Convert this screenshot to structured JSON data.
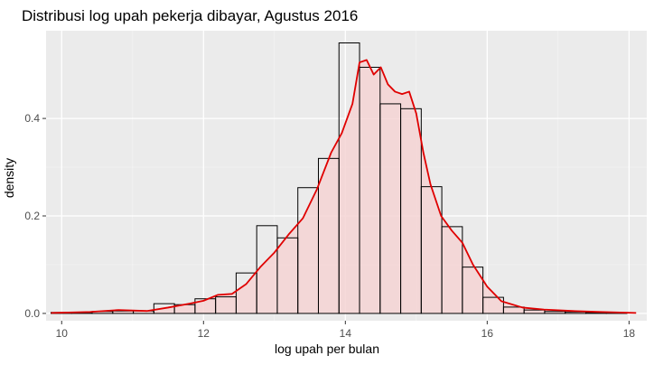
{
  "chart_data": {
    "type": "bar",
    "title": "Distribusi log upah pekerja dibayar, Agustus 2016",
    "xlabel": "log upah per bulan",
    "ylabel": "density",
    "xlim": [
      9.78,
      18.25
    ],
    "ylim": [
      -0.015,
      0.58
    ],
    "x_ticks": [
      10,
      12,
      14,
      16,
      18
    ],
    "x_tick_labels": [
      "10",
      "12",
      "14",
      "16",
      "18"
    ],
    "y_ticks": [
      0.0,
      0.2,
      0.4
    ],
    "y_tick_labels": [
      "0.0",
      "0.2",
      "0.4"
    ],
    "grid": true,
    "bin_width": 0.29,
    "bin_edges": [
      9.85,
      10.14,
      10.43,
      10.72,
      11.01,
      11.3,
      11.59,
      11.88,
      12.17,
      12.46,
      12.75,
      13.04,
      13.33,
      13.62,
      13.91,
      14.2,
      14.49,
      14.78,
      15.07,
      15.36,
      15.65,
      15.94,
      16.23,
      16.52,
      16.81,
      17.1,
      17.39,
      17.68,
      17.97
    ],
    "values": [
      0.002,
      0.002,
      0.004,
      0.005,
      0.005,
      0.02,
      0.018,
      0.03,
      0.034,
      0.083,
      0.18,
      0.155,
      0.258,
      0.318,
      0.555,
      0.505,
      0.43,
      0.42,
      0.26,
      0.178,
      0.095,
      0.033,
      0.013,
      0.007,
      0.004,
      0.003,
      0.002,
      0.001
    ],
    "density_curve": {
      "x": [
        9.85,
        10.4,
        10.8,
        11.2,
        11.5,
        11.8,
        12.0,
        12.2,
        12.4,
        12.6,
        12.8,
        13.0,
        13.2,
        13.4,
        13.6,
        13.8,
        13.95,
        14.1,
        14.2,
        14.3,
        14.4,
        14.5,
        14.6,
        14.7,
        14.8,
        14.9,
        15.0,
        15.1,
        15.2,
        15.35,
        15.5,
        15.65,
        15.8,
        16.0,
        16.2,
        16.5,
        16.8,
        17.2,
        17.6,
        18.1
      ],
      "y": [
        0.001,
        0.003,
        0.007,
        0.005,
        0.012,
        0.02,
        0.026,
        0.038,
        0.04,
        0.06,
        0.095,
        0.125,
        0.162,
        0.195,
        0.255,
        0.33,
        0.37,
        0.43,
        0.515,
        0.52,
        0.49,
        0.505,
        0.47,
        0.455,
        0.45,
        0.455,
        0.41,
        0.33,
        0.265,
        0.2,
        0.17,
        0.145,
        0.1,
        0.055,
        0.025,
        0.012,
        0.008,
        0.005,
        0.003,
        0.001
      ],
      "color": "#e00000",
      "fill": "#f4d4d4"
    },
    "colors": {
      "panel_background": "#ebebeb",
      "grid_major": "#ffffff",
      "grid_minor": "#f4f4f4",
      "bar_fill": "none",
      "bar_outline": "#000000",
      "text": "#000000",
      "tick_text": "#4d4d4d"
    }
  }
}
